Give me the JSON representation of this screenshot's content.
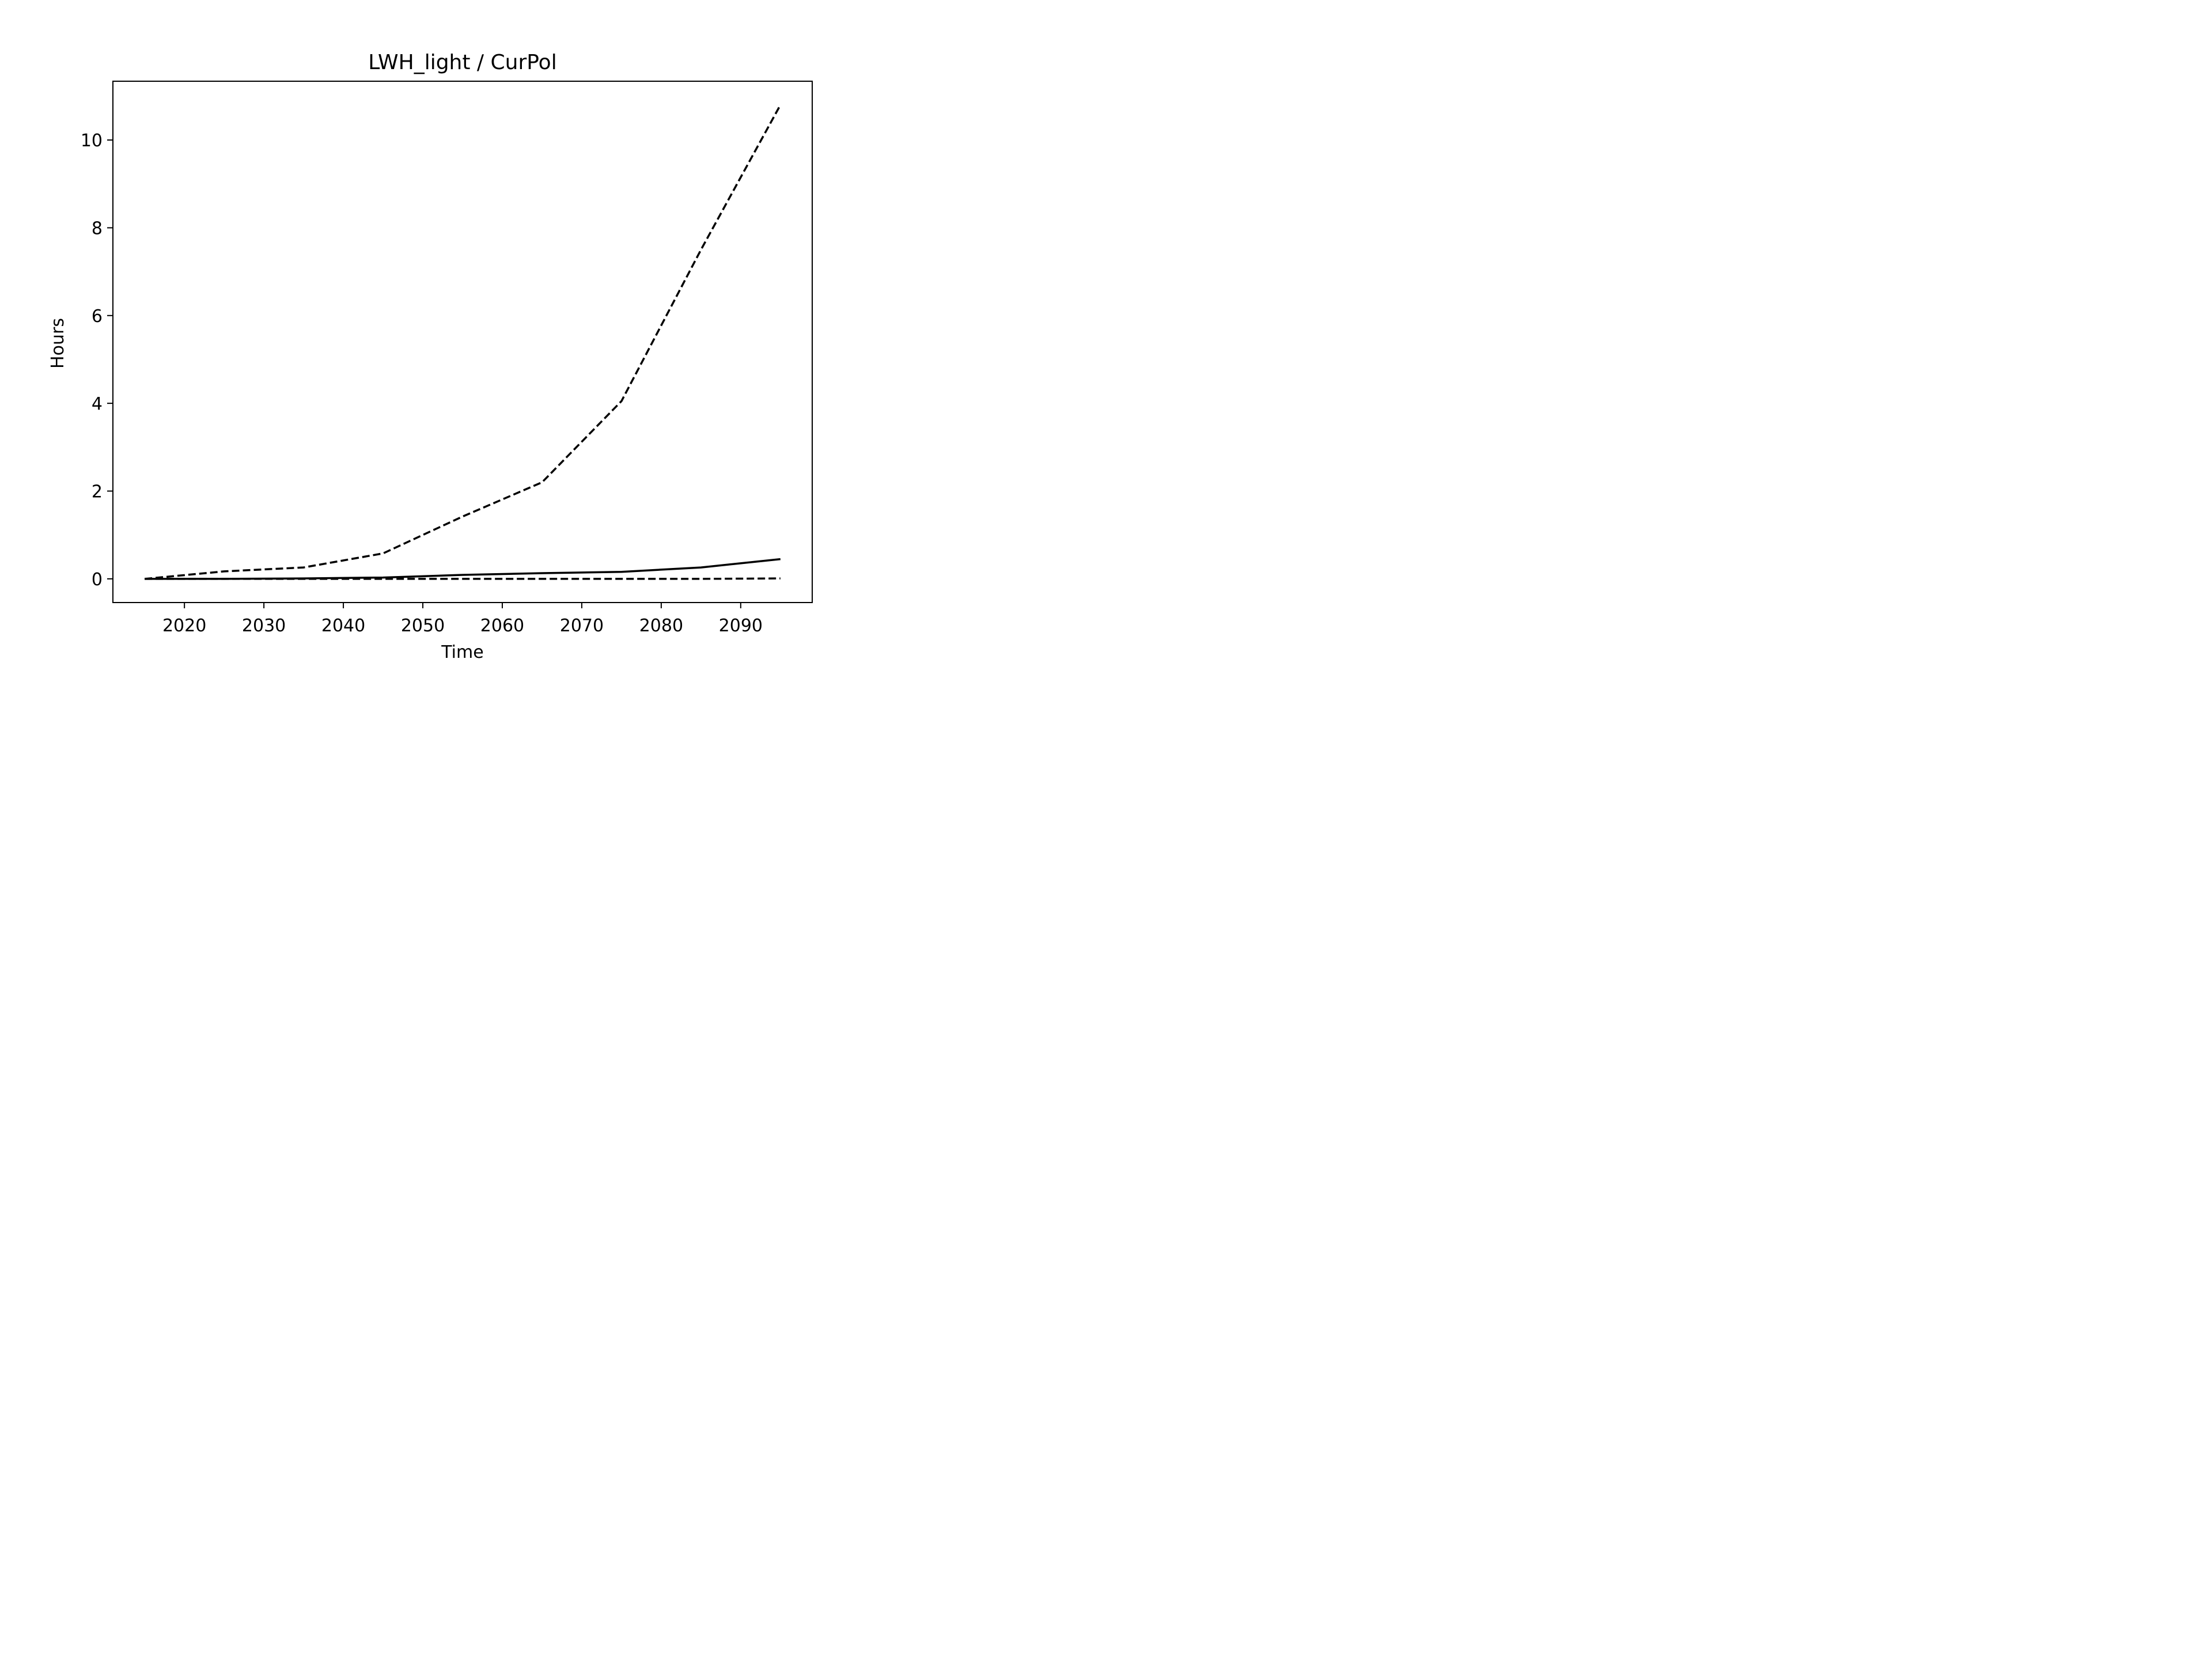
{
  "chart_data": {
    "type": "line",
    "title": "LWH_light / CurPol",
    "xlabel": "Time",
    "ylabel": "Hours",
    "xlim": [
      2011,
      2099
    ],
    "ylim": [
      -0.54,
      11.34
    ],
    "xticks": [
      2020,
      2030,
      2040,
      2050,
      2060,
      2070,
      2080,
      2090
    ],
    "yticks": [
      0,
      2,
      4,
      6,
      8,
      10
    ],
    "grid": false,
    "legend": "none",
    "x": [
      2015,
      2025,
      2035,
      2045,
      2055,
      2065,
      2075,
      2085,
      2095
    ],
    "series": [
      {
        "style": "dashed",
        "color": "#000000",
        "values": [
          0.0,
          0.17,
          0.26,
          0.58,
          1.42,
          2.2,
          4.05,
          7.5,
          10.8
        ]
      },
      {
        "style": "solid",
        "color": "#000000",
        "values": [
          0.0,
          0.0,
          0.01,
          0.03,
          0.09,
          0.13,
          0.16,
          0.26,
          0.45
        ]
      },
      {
        "style": "dashed",
        "color": "#000000",
        "values": [
          0.0,
          0.0,
          0.0,
          0.0,
          0.0,
          0.0,
          0.0,
          0.0,
          0.01
        ]
      }
    ]
  }
}
